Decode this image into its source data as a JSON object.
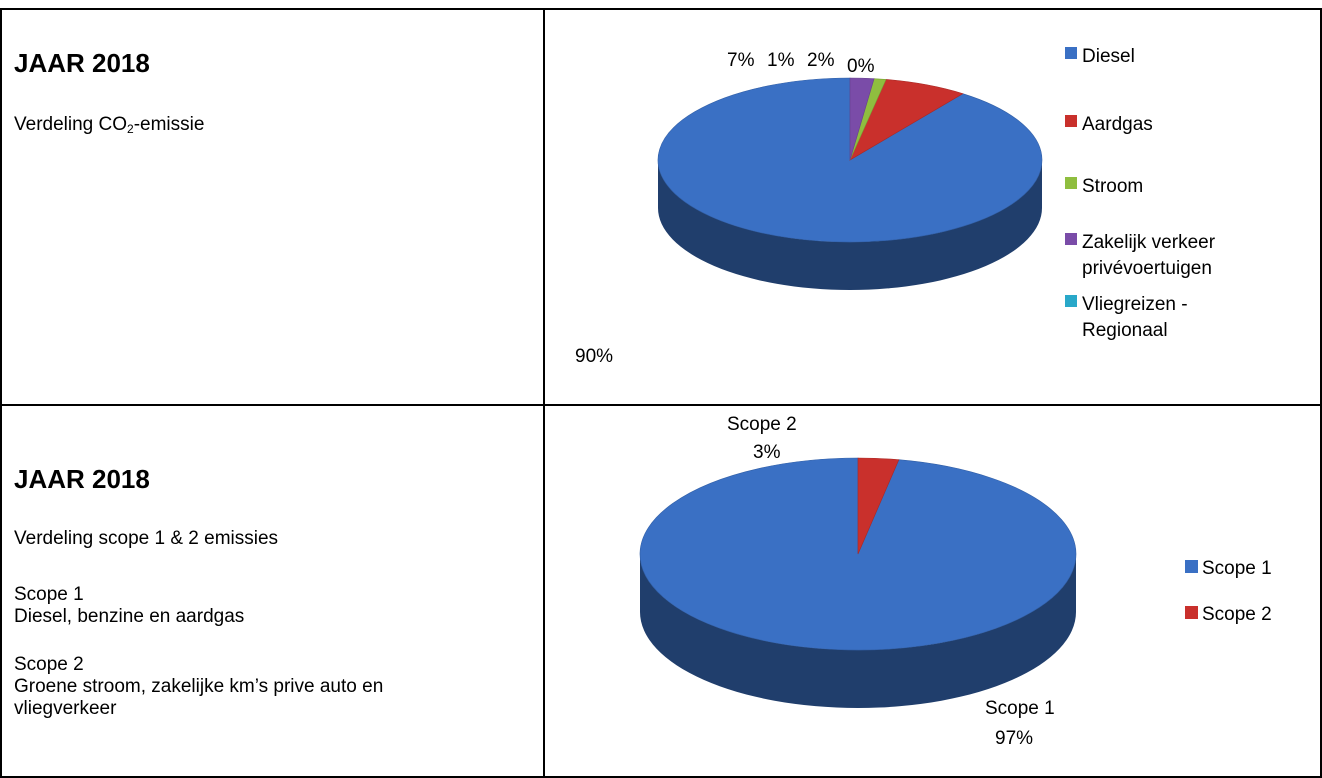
{
  "left_panel_top": {
    "title": "JAAR 2018",
    "subtitle_prefix": "Verdeling CO",
    "subtitle_sub": "2",
    "subtitle_suffix": "-emissie"
  },
  "left_panel_bottom": {
    "title": "JAAR 2018",
    "subtitle": "Verdeling scope 1 & 2 emissies",
    "scope1_heading": "Scope 1",
    "scope1_desc": "Diesel, benzine en aardgas",
    "scope2_heading": "Scope 2",
    "scope2_desc_line1": "Groene stroom, zakelijke km’s prive auto en",
    "scope2_desc_line2": "vliegverkeer"
  },
  "chart_data": [
    {
      "type": "pie",
      "title": "",
      "categories": [
        "Diesel",
        "Aardgas",
        "Stroom",
        "Zakelijk verkeer privévoertuigen",
        "Vliegreizen - Regionaal"
      ],
      "values": [
        90,
        7,
        1,
        2,
        0
      ],
      "labels": [
        "90%",
        "7%",
        "1%",
        "2%",
        "0%"
      ],
      "colors": [
        "#3a70c4",
        "#c9302c",
        "#8fbe3f",
        "#7a4ca8",
        "#29a8c9"
      ],
      "legend": {
        "placement": "right",
        "entries": [
          "Diesel",
          "Aardgas",
          "Stroom",
          "Zakelijk verkeer privévoertuigen",
          "Vliegreizen - Regionaal"
        ]
      },
      "style": "3d"
    },
    {
      "type": "pie",
      "title": "",
      "categories": [
        "Scope 1",
        "Scope 2"
      ],
      "values": [
        97,
        3
      ],
      "labels": [
        "97%",
        "3%"
      ],
      "colors": [
        "#3a70c4",
        "#c9302c"
      ],
      "legend": {
        "placement": "right",
        "entries": [
          "Scope 1",
          "Scope 2"
        ]
      },
      "style": "3d"
    }
  ]
}
